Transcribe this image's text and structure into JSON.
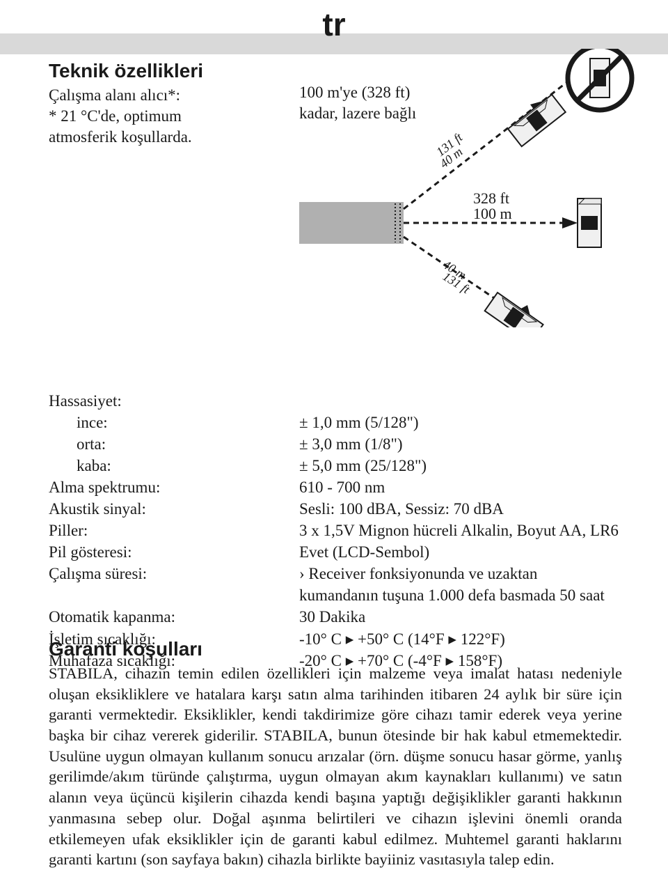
{
  "lang": "tr",
  "title": "Teknik özellikleri",
  "left_block": [
    "Çalışma alanı alıcı*:",
    "* 21 °C'de, optimum",
    "atmosferik koşullarda."
  ],
  "right_block": [
    "100 m'ye (328 ft)",
    "kadar, lazere bağlı"
  ],
  "diagram": {
    "upper_angle": "131 ft",
    "upper_angle2": "40 m",
    "center_dist": "328 ft",
    "center_dist2": "100 m",
    "lower_angle": "131 ft",
    "lower_angle2": "40 m"
  },
  "specs": [
    {
      "label": "Hassasiyet:",
      "value": "",
      "indent": false
    },
    {
      "label": "ince:",
      "value": "± 1,0 mm (5/128\")",
      "indent": true
    },
    {
      "label": "orta:",
      "value": "± 3,0 mm (1/8\")",
      "indent": true
    },
    {
      "label": "kaba:",
      "value": "± 5,0 mm (25/128\")",
      "indent": true
    },
    {
      "label": "Alma spektrumu:",
      "value": "610 - 700 nm",
      "indent": false
    },
    {
      "label": "Akustik sinyal:",
      "value": "Sesli: 100 dBA, Sessiz: 70 dBA",
      "indent": false
    },
    {
      "label": "Piller:",
      "value": "3 x 1,5V Mignon hücreli Alkalin, Boyut AA, LR6",
      "indent": false
    },
    {
      "label": "Pil gösteresi:",
      "value": "Evet (LCD-Sembol)",
      "indent": false
    },
    {
      "label": "Çalışma süresi:",
      "value": "› Receiver fonksiyonunda ve uzaktan kumandanın tuşuna 1.000 defa basmada 50 saat",
      "indent": false
    },
    {
      "label": "Otomatik kapanma:",
      "value": "30 Dakika",
      "indent": false
    },
    {
      "label": "İşletim sıcaklığı:",
      "value": "-10° C ▸ +50° C (14°F ▸ 122°F)",
      "indent": false
    },
    {
      "label": "Muhafaza sıcaklığı:",
      "value": "-20° C ▸ +70° C (-4°F ▸ 158°F)",
      "indent": false
    }
  ],
  "warranty_title": "Garanti koşulları",
  "warranty_text": "STABILA, cihazın temin edilen özellikleri için malzeme veya imalat hatası nedeniyle oluşan eksikliklere ve hatalara karşı satın alma tarihinden itibaren 24 aylık bir süre için garanti vermektedir. Eksiklikler, kendi takdirimize göre cihazı tamir ederek veya yerine başka bir cihaz vererek giderilir. STABILA, bunun ötesinde bir hak kabul etmemektedir. Usulüne uygun olmayan kullanım sonucu arızalar (örn. düşme sonucu hasar görme, yanlış gerilimde/akım türünde çalıştırma, uygun olmayan akım kaynakları kullanımı) ve satın alanın veya üçüncü kişilerin cihazda kendi başına yaptığı değişiklikler garanti hakkının yanmasına sebep olur. Doğal aşınma belirtileri ve cihazın işlevini önemli oranda etkilemeyen ufak eksiklikler için de garanti kabul edilmez. Muhtemel garanti haklarını garanti kartını (son sayfaya bakın) cihazla birlikte bayiiniz vasıtasıyla talep edin."
}
